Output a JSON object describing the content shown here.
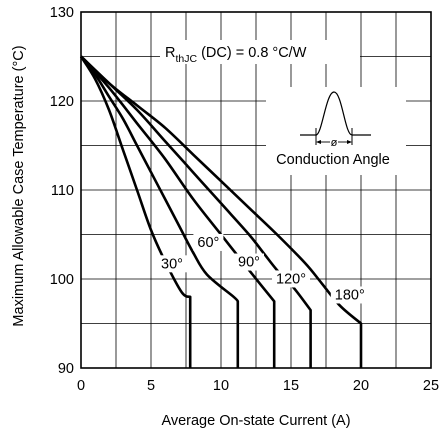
{
  "chart_data": {
    "type": "line",
    "xlabel": "Average On-state Current (A)",
    "ylabel": "Maximum Allowable Case Temperature (°C)",
    "xlim": [
      0,
      25
    ],
    "ylim": [
      90,
      130
    ],
    "xticks": [
      0,
      5,
      10,
      15,
      20,
      25
    ],
    "yticks": [
      90,
      100,
      110,
      120,
      130
    ],
    "grid": true,
    "series": [
      {
        "name": "30°",
        "points": [
          [
            0,
            125
          ],
          [
            1,
            122.5
          ],
          [
            2,
            119
          ],
          [
            3,
            114.5
          ],
          [
            4,
            110
          ],
          [
            5,
            105.5
          ],
          [
            6,
            102
          ],
          [
            7.2,
            98.5
          ],
          [
            7.8,
            98
          ],
          [
            7.8,
            90
          ]
        ]
      },
      {
        "name": "60°",
        "points": [
          [
            0,
            125
          ],
          [
            1,
            123
          ],
          [
            2,
            120.5
          ],
          [
            3,
            118
          ],
          [
            4,
            115
          ],
          [
            5,
            112
          ],
          [
            6,
            109
          ],
          [
            7,
            106
          ],
          [
            8,
            103
          ],
          [
            9,
            100.5
          ],
          [
            10.9,
            98
          ],
          [
            11.2,
            97.5
          ],
          [
            11.2,
            90
          ]
        ]
      },
      {
        "name": "90°",
        "points": [
          [
            0,
            125
          ],
          [
            2,
            121.5
          ],
          [
            4,
            117.5
          ],
          [
            6,
            113.5
          ],
          [
            8,
            109
          ],
          [
            10,
            105
          ],
          [
            11,
            103
          ],
          [
            12,
            101
          ],
          [
            13.8,
            97.5
          ],
          [
            13.8,
            90
          ]
        ]
      },
      {
        "name": "120°",
        "points": [
          [
            0,
            125
          ],
          [
            2,
            122
          ],
          [
            4,
            119
          ],
          [
            6,
            115.5
          ],
          [
            8,
            112
          ],
          [
            10,
            108.5
          ],
          [
            12,
            105
          ],
          [
            13,
            103
          ],
          [
            14,
            101
          ],
          [
            15.2,
            99
          ],
          [
            16.4,
            96.5
          ],
          [
            16.4,
            90
          ]
        ]
      },
      {
        "name": "180°",
        "points": [
          [
            0,
            125
          ],
          [
            2,
            122
          ],
          [
            4,
            119.5
          ],
          [
            6,
            117
          ],
          [
            8,
            114
          ],
          [
            10,
            111
          ],
          [
            12,
            108
          ],
          [
            14,
            105
          ],
          [
            16,
            101.8
          ],
          [
            17.2,
            99.5
          ],
          [
            18.5,
            97
          ],
          [
            20,
            95
          ],
          [
            20,
            90
          ]
        ]
      }
    ]
  },
  "annotation": {
    "rth_prefix": "R",
    "rth_subscript": "thJC",
    "rth_suffix": " (DC) = 0.8 °C/W",
    "conduction_label": "Conduction Angle",
    "phi_symbol": "ø"
  }
}
